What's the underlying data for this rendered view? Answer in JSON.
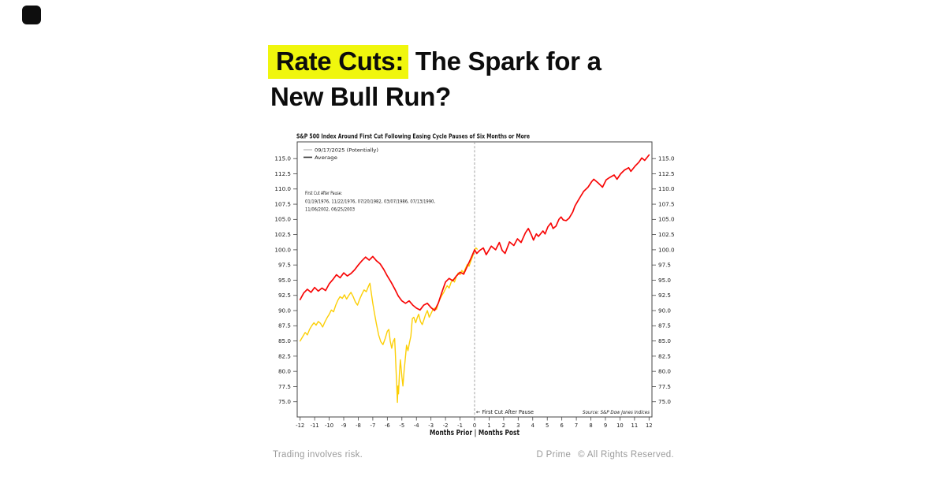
{
  "header": {
    "title_highlight": "Rate Cuts:",
    "title_line1_rest": " The Spark for a",
    "title_line2": "New Bull Run?",
    "highlight_color": "#f0f60d",
    "text_color": "#0c0c0c"
  },
  "footer": {
    "left": "Trading involves risk.",
    "brand": "D Prime",
    "rights": "© All Rights Reserved.",
    "color": "#9b9b9b"
  },
  "chart_data": {
    "type": "line",
    "title": "S&P 500 Index Around First Cut Following Easing Cycle Pauses of Six Months or More",
    "xlabel": "Months Prior | Months Post",
    "ylabel": "",
    "xlim": [
      -12.2,
      12.2
    ],
    "ylim": [
      72.5,
      117.75
    ],
    "grid": false,
    "x_ticks": [
      -12,
      -11,
      -10,
      -9,
      -8,
      -7,
      -6,
      -5,
      -4,
      -3,
      -2,
      -1,
      0,
      1,
      2,
      3,
      4,
      5,
      6,
      7,
      8,
      9,
      10,
      11,
      12
    ],
    "y_ticks": [
      75,
      77.5,
      80,
      82.5,
      85,
      87.5,
      90,
      92.5,
      95,
      97.5,
      100,
      102.5,
      105,
      107.5,
      110,
      112.5,
      115
    ],
    "y_tick_labels": [
      "75.0",
      "77.5",
      "80.0",
      "82.5",
      "85.0",
      "87.5",
      "90.0",
      "92.5",
      "95.0",
      "97.5",
      "100.0",
      "102.5",
      "105.0",
      "107.5",
      "110.0",
      "112.5",
      "115.0"
    ],
    "legend": {
      "position": "upper-left",
      "items": [
        {
          "label": "09/17/2025 (Potentially)",
          "swatch_color": "#c6c6c6"
        },
        {
          "label": "Average",
          "swatch_color": "#2f2f2f"
        }
      ]
    },
    "vline": {
      "x": 0,
      "style": "dashed",
      "color": "#999999"
    },
    "annotations": {
      "note_lines": [
        "First Cut After Pause:",
        "01/19/1976, 11/22/1976, 07/20/1982, 03/07/1986, 07/13/1990,",
        "11/06/2002, 06/25/2003"
      ],
      "event_label": "←  First Cut After Pause",
      "source": "Source:   S&P Dow Jones Indices"
    },
    "series": [
      {
        "name": "09/17/2025 (Potentially)",
        "color": "#fccf06",
        "width": 1.4,
        "points": [
          [
            -12,
            85.0
          ],
          [
            -11.8,
            85.8
          ],
          [
            -11.65,
            86.4
          ],
          [
            -11.5,
            86.0
          ],
          [
            -11.35,
            86.9
          ],
          [
            -11.2,
            87.5
          ],
          [
            -11.05,
            88.0
          ],
          [
            -10.9,
            87.6
          ],
          [
            -10.75,
            88.2
          ],
          [
            -10.6,
            87.9
          ],
          [
            -10.45,
            87.3
          ],
          [
            -10.3,
            88.1
          ],
          [
            -10.15,
            88.8
          ],
          [
            -10,
            89.4
          ],
          [
            -9.85,
            90.1
          ],
          [
            -9.7,
            89.8
          ],
          [
            -9.55,
            90.9
          ],
          [
            -9.4,
            91.7
          ],
          [
            -9.25,
            92.3
          ],
          [
            -9.1,
            92.0
          ],
          [
            -8.95,
            92.6
          ],
          [
            -8.8,
            91.9
          ],
          [
            -8.65,
            92.5
          ],
          [
            -8.5,
            93.0
          ],
          [
            -8.35,
            92.3
          ],
          [
            -8.2,
            91.4
          ],
          [
            -8.05,
            90.9
          ],
          [
            -7.9,
            91.9
          ],
          [
            -7.75,
            92.7
          ],
          [
            -7.6,
            93.4
          ],
          [
            -7.45,
            93.1
          ],
          [
            -7.3,
            94.0
          ],
          [
            -7.2,
            94.5
          ],
          [
            -7.1,
            92.8
          ],
          [
            -7.0,
            91.2
          ],
          [
            -6.9,
            89.8
          ],
          [
            -6.75,
            87.8
          ],
          [
            -6.6,
            86.0
          ],
          [
            -6.45,
            84.9
          ],
          [
            -6.3,
            84.4
          ],
          [
            -6.15,
            85.4
          ],
          [
            -6.0,
            86.6
          ],
          [
            -5.9,
            86.9
          ],
          [
            -5.8,
            85.0
          ],
          [
            -5.7,
            83.8
          ],
          [
            -5.6,
            84.9
          ],
          [
            -5.5,
            85.4
          ],
          [
            -5.45,
            83.0
          ],
          [
            -5.4,
            80.2
          ],
          [
            -5.36,
            78.2
          ],
          [
            -5.31,
            74.9
          ],
          [
            -5.27,
            77.6
          ],
          [
            -5.23,
            76.3
          ],
          [
            -5.17,
            79.7
          ],
          [
            -5.1,
            81.9
          ],
          [
            -5.0,
            79.1
          ],
          [
            -4.93,
            77.6
          ],
          [
            -4.85,
            80.1
          ],
          [
            -4.76,
            82.2
          ],
          [
            -4.68,
            84.3
          ],
          [
            -4.58,
            83.4
          ],
          [
            -4.48,
            84.7
          ],
          [
            -4.38,
            85.8
          ],
          [
            -4.33,
            87.3
          ],
          [
            -4.28,
            88.7
          ],
          [
            -4.18,
            88.9
          ],
          [
            -4.05,
            88.0
          ],
          [
            -3.95,
            88.8
          ],
          [
            -3.85,
            89.4
          ],
          [
            -3.72,
            88.2
          ],
          [
            -3.6,
            87.7
          ],
          [
            -3.5,
            88.4
          ],
          [
            -3.38,
            89.3
          ],
          [
            -3.25,
            90.0
          ],
          [
            -3.12,
            88.9
          ],
          [
            -3.0,
            89.5
          ],
          [
            -2.88,
            90.1
          ],
          [
            -2.75,
            90.4
          ],
          [
            -2.62,
            90.2
          ],
          [
            -2.5,
            91.2
          ],
          [
            -2.38,
            91.9
          ],
          [
            -2.25,
            92.5
          ],
          [
            -2.12,
            93.0
          ],
          [
            -2.0,
            93.6
          ],
          [
            -1.88,
            94.1
          ],
          [
            -1.75,
            93.7
          ],
          [
            -1.62,
            94.6
          ],
          [
            -1.5,
            95.1
          ],
          [
            -1.38,
            94.7
          ],
          [
            -1.25,
            95.6
          ],
          [
            -1.12,
            96.2
          ],
          [
            -1.0,
            95.9
          ],
          [
            -0.88,
            96.6
          ],
          [
            -0.75,
            96.2
          ],
          [
            -0.62,
            97.0
          ],
          [
            -0.5,
            97.6
          ],
          [
            -0.38,
            97.3
          ],
          [
            -0.25,
            98.2
          ],
          [
            -0.12,
            99.0
          ],
          [
            0,
            100.0
          ],
          [
            0.1,
            100.3
          ],
          [
            0.18,
            100.1
          ]
        ]
      },
      {
        "name": "Average",
        "color": "#f80707",
        "width": 1.7,
        "points": [
          [
            -12,
            91.8
          ],
          [
            -11.75,
            92.9
          ],
          [
            -11.5,
            93.5
          ],
          [
            -11.25,
            93.0
          ],
          [
            -11,
            93.8
          ],
          [
            -10.75,
            93.2
          ],
          [
            -10.5,
            93.7
          ],
          [
            -10.25,
            93.3
          ],
          [
            -10,
            94.4
          ],
          [
            -9.75,
            95.1
          ],
          [
            -9.5,
            95.9
          ],
          [
            -9.25,
            95.4
          ],
          [
            -9,
            96.2
          ],
          [
            -8.75,
            95.7
          ],
          [
            -8.5,
            96.1
          ],
          [
            -8.25,
            96.7
          ],
          [
            -8,
            97.5
          ],
          [
            -7.75,
            98.2
          ],
          [
            -7.5,
            98.8
          ],
          [
            -7.25,
            98.3
          ],
          [
            -7,
            98.9
          ],
          [
            -6.75,
            98.2
          ],
          [
            -6.5,
            97.7
          ],
          [
            -6.25,
            96.8
          ],
          [
            -6,
            95.7
          ],
          [
            -5.75,
            94.7
          ],
          [
            -5.5,
            93.6
          ],
          [
            -5.25,
            92.4
          ],
          [
            -5,
            91.6
          ],
          [
            -4.75,
            91.2
          ],
          [
            -4.5,
            91.6
          ],
          [
            -4.25,
            90.9
          ],
          [
            -4,
            90.4
          ],
          [
            -3.75,
            90.1
          ],
          [
            -3.5,
            90.9
          ],
          [
            -3.25,
            91.2
          ],
          [
            -3,
            90.5
          ],
          [
            -2.75,
            90.0
          ],
          [
            -2.5,
            91.2
          ],
          [
            -2.25,
            93.0
          ],
          [
            -2,
            94.7
          ],
          [
            -1.75,
            95.3
          ],
          [
            -1.5,
            94.9
          ],
          [
            -1.25,
            95.7
          ],
          [
            -1,
            96.3
          ],
          [
            -0.75,
            96.0
          ],
          [
            -0.5,
            97.3
          ],
          [
            -0.25,
            98.6
          ],
          [
            0,
            100.0
          ],
          [
            0.15,
            99.4
          ],
          [
            0.35,
            99.9
          ],
          [
            0.6,
            100.3
          ],
          [
            0.8,
            99.2
          ],
          [
            1.15,
            100.6
          ],
          [
            1.45,
            100.0
          ],
          [
            1.7,
            101.2
          ],
          [
            1.9,
            99.9
          ],
          [
            2.1,
            99.4
          ],
          [
            2.4,
            101.3
          ],
          [
            2.7,
            100.7
          ],
          [
            2.95,
            101.8
          ],
          [
            3.2,
            101.2
          ],
          [
            3.5,
            102.8
          ],
          [
            3.7,
            103.5
          ],
          [
            3.9,
            102.5
          ],
          [
            4.05,
            101.6
          ],
          [
            4.25,
            102.6
          ],
          [
            4.4,
            102.2
          ],
          [
            4.7,
            103.1
          ],
          [
            4.85,
            102.6
          ],
          [
            5.05,
            103.8
          ],
          [
            5.25,
            104.4
          ],
          [
            5.4,
            103.5
          ],
          [
            5.6,
            103.9
          ],
          [
            5.8,
            105.0
          ],
          [
            5.95,
            105.4
          ],
          [
            6.1,
            104.9
          ],
          [
            6.3,
            104.8
          ],
          [
            6.5,
            105.2
          ],
          [
            6.75,
            106.2
          ],
          [
            6.9,
            107.2
          ],
          [
            7.1,
            108.0
          ],
          [
            7.3,
            108.8
          ],
          [
            7.5,
            109.6
          ],
          [
            7.8,
            110.3
          ],
          [
            8.05,
            111.2
          ],
          [
            8.2,
            111.6
          ],
          [
            8.5,
            111.0
          ],
          [
            8.8,
            110.3
          ],
          [
            9.05,
            111.5
          ],
          [
            9.3,
            111.9
          ],
          [
            9.6,
            112.3
          ],
          [
            9.8,
            111.6
          ],
          [
            10.05,
            112.5
          ],
          [
            10.3,
            113.1
          ],
          [
            10.6,
            113.5
          ],
          [
            10.75,
            112.9
          ],
          [
            11.05,
            113.8
          ],
          [
            11.3,
            114.4
          ],
          [
            11.5,
            115.1
          ],
          [
            11.7,
            114.7
          ],
          [
            12,
            115.6
          ]
        ]
      }
    ]
  }
}
